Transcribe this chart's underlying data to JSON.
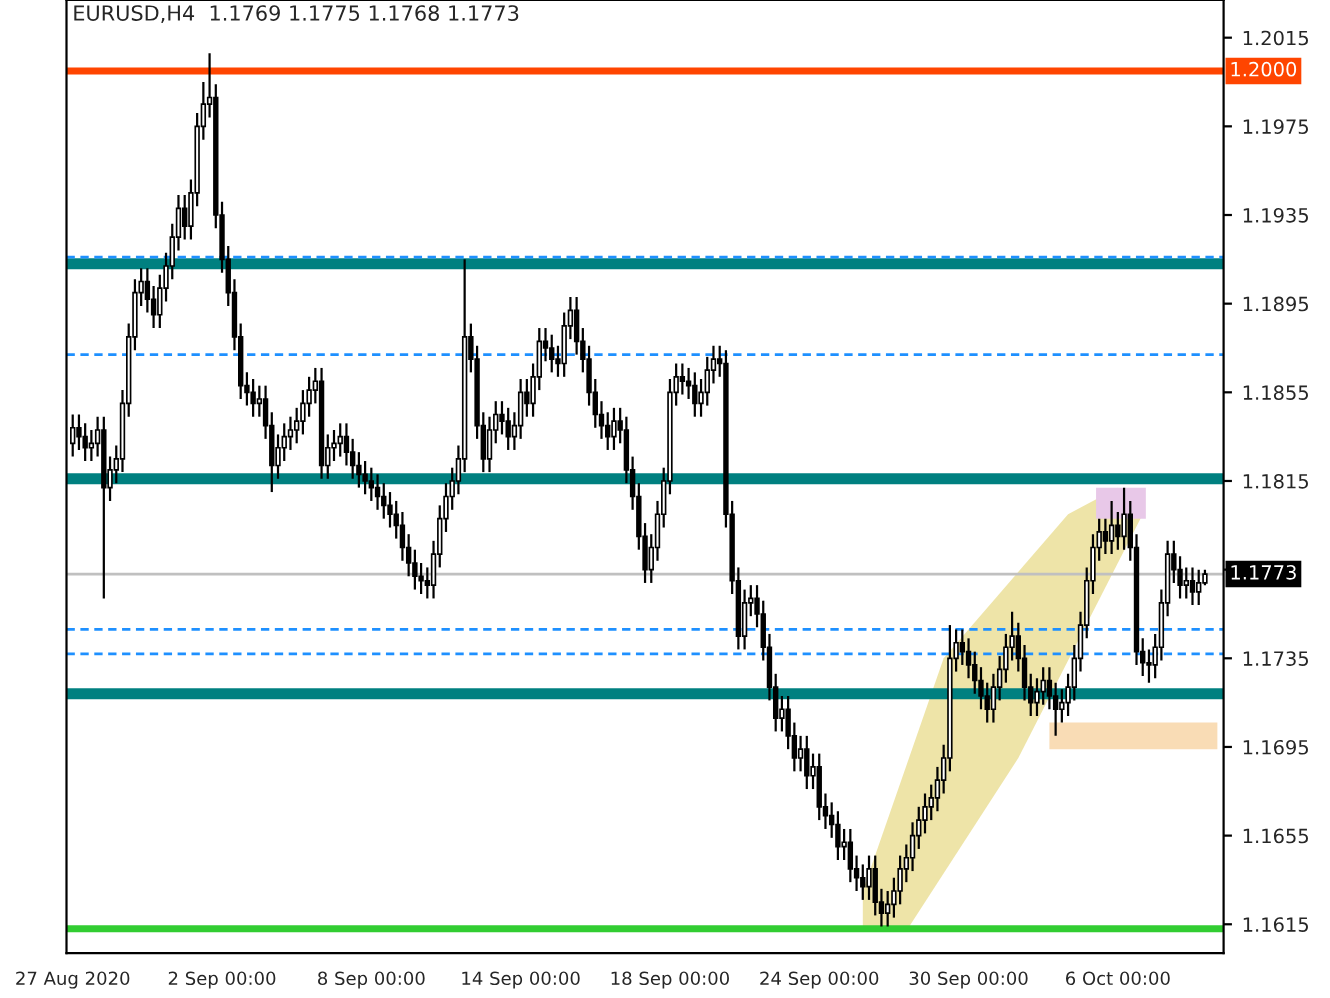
{
  "chart_data": {
    "type": "candlestick",
    "title": "EURUSD,H4  1.1769 1.1775 1.1768 1.1773",
    "categories": [
      "27 Aug 2020",
      null,
      null,
      null,
      null,
      null,
      null,
      null,
      null,
      null,
      null,
      null,
      null,
      null,
      null,
      null,
      null,
      null,
      null,
      null,
      null,
      null,
      null,
      null,
      "2 Sep 00:00",
      null,
      null,
      null,
      null,
      null,
      null,
      null,
      null,
      null,
      null,
      null,
      null,
      null,
      null,
      null,
      null,
      null,
      null,
      null,
      null,
      null,
      null,
      null,
      "8 Sep 00:00",
      null,
      null,
      null,
      null,
      null,
      null,
      null,
      null,
      null,
      null,
      null,
      null,
      null,
      null,
      null,
      null,
      null,
      null,
      null,
      null,
      null,
      null,
      null,
      "14 Sep 00:00",
      null,
      null,
      null,
      null,
      null,
      null,
      null,
      null,
      null,
      null,
      null,
      null,
      null,
      null,
      null,
      null,
      null,
      null,
      null,
      null,
      null,
      null,
      null,
      "18 Sep 00:00",
      null,
      null,
      null,
      null,
      null,
      null,
      null,
      null,
      null,
      null,
      null,
      null,
      null,
      null,
      null,
      null,
      null,
      null,
      null,
      null,
      null,
      null,
      null,
      "24 Sep 00:00",
      null,
      null,
      null,
      null,
      null,
      null,
      null,
      null,
      null,
      null,
      null,
      null,
      null,
      null,
      null,
      null,
      null,
      null,
      null,
      null,
      null,
      null,
      null,
      "30 Sep 00:00",
      null,
      null,
      null,
      null,
      null,
      null,
      null,
      null,
      null,
      null,
      null,
      null,
      null,
      null,
      null,
      null,
      null,
      null,
      null,
      null,
      null,
      null,
      null,
      "6 Oct 00:00",
      null,
      null,
      null,
      null,
      null,
      null,
      null,
      null,
      null,
      null,
      null,
      null,
      null,
      null
    ],
    "ohlc": [
      [
        1.1832,
        1.1845,
        1.1826,
        1.1839
      ],
      [
        1.1839,
        1.1845,
        1.1829,
        1.1835
      ],
      [
        1.1835,
        1.1841,
        1.1824,
        1.183
      ],
      [
        1.183,
        1.1838,
        1.1824,
        1.1832
      ],
      [
        1.1832,
        1.1844,
        1.1826,
        1.1838
      ],
      [
        1.1838,
        1.1844,
        1.1762,
        1.1812
      ],
      [
        1.1812,
        1.1826,
        1.1806,
        1.182
      ],
      [
        1.182,
        1.1831,
        1.1814,
        1.1825
      ],
      [
        1.1825,
        1.1856,
        1.1819,
        1.185
      ],
      [
        1.185,
        1.1886,
        1.1844,
        1.188
      ],
      [
        1.188,
        1.1906,
        1.1874,
        1.19
      ],
      [
        1.19,
        1.1911,
        1.1894,
        1.1905
      ],
      [
        1.1905,
        1.1911,
        1.1891,
        1.1897
      ],
      [
        1.1897,
        1.1903,
        1.1884,
        1.189
      ],
      [
        1.189,
        1.1908,
        1.1884,
        1.1902
      ],
      [
        1.1902,
        1.1918,
        1.1896,
        1.1912
      ],
      [
        1.1912,
        1.1931,
        1.1906,
        1.1925
      ],
      [
        1.1925,
        1.1944,
        1.1919,
        1.1938
      ],
      [
        1.1938,
        1.1944,
        1.1924,
        1.193
      ],
      [
        1.193,
        1.1951,
        1.1924,
        1.1945
      ],
      [
        1.1945,
        1.1981,
        1.1939,
        1.1975
      ],
      [
        1.1975,
        1.1995,
        1.1969,
        1.1985
      ],
      [
        1.1985,
        1.2008,
        1.1979,
        1.1988
      ],
      [
        1.1988,
        1.1994,
        1.1929,
        1.1935
      ],
      [
        1.1935,
        1.1941,
        1.1909,
        1.1915
      ],
      [
        1.1915,
        1.1921,
        1.1894,
        1.19
      ],
      [
        1.19,
        1.1906,
        1.1874,
        1.188
      ],
      [
        1.188,
        1.1886,
        1.1852,
        1.1858
      ],
      [
        1.1858,
        1.1864,
        1.1849,
        1.1855
      ],
      [
        1.1855,
        1.1861,
        1.1844,
        1.185
      ],
      [
        1.185,
        1.1858,
        1.1844,
        1.1852
      ],
      [
        1.1852,
        1.1858,
        1.1834,
        1.184
      ],
      [
        1.184,
        1.1846,
        1.181,
        1.1822
      ],
      [
        1.1822,
        1.1836,
        1.1816,
        1.183
      ],
      [
        1.183,
        1.1841,
        1.1824,
        1.1835
      ],
      [
        1.1835,
        1.1844,
        1.1829,
        1.1838
      ],
      [
        1.1838,
        1.1848,
        1.1832,
        1.1842
      ],
      [
        1.1842,
        1.1856,
        1.1836,
        1.185
      ],
      [
        1.185,
        1.1862,
        1.1844,
        1.1856
      ],
      [
        1.1856,
        1.1866,
        1.185,
        1.186
      ],
      [
        1.186,
        1.1866,
        1.1816,
        1.1822
      ],
      [
        1.1822,
        1.1836,
        1.1816,
        1.183
      ],
      [
        1.183,
        1.1838,
        1.1824,
        1.1832
      ],
      [
        1.1832,
        1.1841,
        1.1826,
        1.1835
      ],
      [
        1.1835,
        1.1841,
        1.1822,
        1.1828
      ],
      [
        1.1828,
        1.1834,
        1.1816,
        1.1822
      ],
      [
        1.1822,
        1.1828,
        1.1812,
        1.1818
      ],
      [
        1.1818,
        1.1824,
        1.1809,
        1.1815
      ],
      [
        1.1815,
        1.1821,
        1.1806,
        1.1812
      ],
      [
        1.1812,
        1.1818,
        1.1802,
        1.1808
      ],
      [
        1.1808,
        1.1814,
        1.1798,
        1.1804
      ],
      [
        1.1804,
        1.181,
        1.1794,
        1.18
      ],
      [
        1.18,
        1.1806,
        1.1789,
        1.1795
      ],
      [
        1.1795,
        1.1801,
        1.1779,
        1.1785
      ],
      [
        1.1785,
        1.1791,
        1.1772,
        1.1778
      ],
      [
        1.1778,
        1.1784,
        1.1766,
        1.1772
      ],
      [
        1.1772,
        1.1778,
        1.1764,
        1.177
      ],
      [
        1.177,
        1.1776,
        1.1762,
        1.1768
      ],
      [
        1.1768,
        1.1788,
        1.1762,
        1.1782
      ],
      [
        1.1782,
        1.1804,
        1.1776,
        1.1798
      ],
      [
        1.1798,
        1.1814,
        1.1792,
        1.1808
      ],
      [
        1.1808,
        1.1821,
        1.1802,
        1.1815
      ],
      [
        1.1815,
        1.1831,
        1.1809,
        1.1825
      ],
      [
        1.1825,
        1.1915,
        1.1819,
        1.188
      ],
      [
        1.188,
        1.1886,
        1.1864,
        1.187
      ],
      [
        1.187,
        1.1876,
        1.1834,
        1.184
      ],
      [
        1.184,
        1.1846,
        1.1819,
        1.1825
      ],
      [
        1.1825,
        1.1844,
        1.1819,
        1.1838
      ],
      [
        1.1838,
        1.1851,
        1.1832,
        1.1845
      ],
      [
        1.1845,
        1.1851,
        1.1836,
        1.1842
      ],
      [
        1.1842,
        1.1848,
        1.1829,
        1.1835
      ],
      [
        1.1835,
        1.1846,
        1.1829,
        1.184
      ],
      [
        1.184,
        1.1861,
        1.1834,
        1.1855
      ],
      [
        1.1855,
        1.1861,
        1.1844,
        1.185
      ],
      [
        1.185,
        1.1868,
        1.1844,
        1.1862
      ],
      [
        1.1862,
        1.1884,
        1.1856,
        1.1878
      ],
      [
        1.1878,
        1.1884,
        1.1869,
        1.1875
      ],
      [
        1.1875,
        1.1881,
        1.1864,
        1.187
      ],
      [
        1.187,
        1.1876,
        1.1862,
        1.1868
      ],
      [
        1.1868,
        1.1891,
        1.1862,
        1.1885
      ],
      [
        1.1885,
        1.1898,
        1.1879,
        1.1892
      ],
      [
        1.1892,
        1.1898,
        1.1872,
        1.1878
      ],
      [
        1.1878,
        1.1884,
        1.1864,
        1.187
      ],
      [
        1.187,
        1.1876,
        1.1849,
        1.1855
      ],
      [
        1.1855,
        1.1861,
        1.1839,
        1.1845
      ],
      [
        1.1845,
        1.1851,
        1.1834,
        1.184
      ],
      [
        1.184,
        1.1846,
        1.1829,
        1.1835
      ],
      [
        1.1835,
        1.1848,
        1.1829,
        1.1842
      ],
      [
        1.1842,
        1.1848,
        1.1832,
        1.1838
      ],
      [
        1.1838,
        1.1844,
        1.1814,
        1.182
      ],
      [
        1.182,
        1.1826,
        1.1802,
        1.1808
      ],
      [
        1.1808,
        1.1814,
        1.1784,
        1.179
      ],
      [
        1.179,
        1.1796,
        1.1769,
        1.1775
      ],
      [
        1.1775,
        1.1791,
        1.1769,
        1.1785
      ],
      [
        1.1785,
        1.1806,
        1.1779,
        1.18
      ],
      [
        1.18,
        1.1821,
        1.1794,
        1.1815
      ],
      [
        1.1815,
        1.1861,
        1.1809,
        1.1855
      ],
      [
        1.1855,
        1.1868,
        1.1849,
        1.1862
      ],
      [
        1.1862,
        1.1868,
        1.1854,
        1.186
      ],
      [
        1.186,
        1.1866,
        1.1852,
        1.1858
      ],
      [
        1.1858,
        1.1864,
        1.1844,
        1.185
      ],
      [
        1.185,
        1.1861,
        1.1844,
        1.1855
      ],
      [
        1.1855,
        1.1871,
        1.1849,
        1.1865
      ],
      [
        1.1865,
        1.1876,
        1.1859,
        1.187
      ],
      [
        1.187,
        1.1876,
        1.1862,
        1.1868
      ],
      [
        1.1868,
        1.1874,
        1.1794,
        1.18
      ],
      [
        1.18,
        1.1806,
        1.1764,
        1.177
      ],
      [
        1.177,
        1.1776,
        1.1739,
        1.1745
      ],
      [
        1.1745,
        1.1766,
        1.1739,
        1.176
      ],
      [
        1.176,
        1.1768,
        1.1754,
        1.1762
      ],
      [
        1.1762,
        1.1768,
        1.1749,
        1.1755
      ],
      [
        1.1755,
        1.1761,
        1.1734,
        1.174
      ],
      [
        1.174,
        1.1746,
        1.1716,
        1.1722
      ],
      [
        1.1722,
        1.1728,
        1.1702,
        1.1708
      ],
      [
        1.1708,
        1.1718,
        1.1702,
        1.1712
      ],
      [
        1.1712,
        1.1718,
        1.1694,
        1.17
      ],
      [
        1.17,
        1.1706,
        1.1684,
        1.169
      ],
      [
        1.169,
        1.17,
        1.1684,
        1.1694
      ],
      [
        1.1694,
        1.17,
        1.1676,
        1.1682
      ],
      [
        1.1682,
        1.1692,
        1.1676,
        1.1686
      ],
      [
        1.1686,
        1.1692,
        1.1662,
        1.1668
      ],
      [
        1.1668,
        1.1674,
        1.1658,
        1.1664
      ],
      [
        1.1664,
        1.167,
        1.1654,
        1.166
      ],
      [
        1.166,
        1.1666,
        1.1644,
        1.165
      ],
      [
        1.165,
        1.1658,
        1.1644,
        1.1652
      ],
      [
        1.1652,
        1.1658,
        1.1634,
        1.164
      ],
      [
        1.164,
        1.1646,
        1.163,
        1.1636
      ],
      [
        1.1636,
        1.1642,
        1.1626,
        1.1632
      ],
      [
        1.1632,
        1.1646,
        1.1626,
        1.164
      ],
      [
        1.164,
        1.1646,
        1.1619,
        1.1625
      ],
      [
        1.1625,
        1.1631,
        1.1614,
        1.162
      ],
      [
        1.162,
        1.163,
        1.1614,
        1.1624
      ],
      [
        1.1624,
        1.1636,
        1.1618,
        1.163
      ],
      [
        1.163,
        1.1646,
        1.1624,
        1.164
      ],
      [
        1.164,
        1.1651,
        1.1634,
        1.1645
      ],
      [
        1.1645,
        1.1661,
        1.1639,
        1.1655
      ],
      [
        1.1655,
        1.1668,
        1.1649,
        1.1662
      ],
      [
        1.1662,
        1.1674,
        1.1656,
        1.1668
      ],
      [
        1.1668,
        1.1678,
        1.1662,
        1.1672
      ],
      [
        1.1672,
        1.1686,
        1.1666,
        1.168
      ],
      [
        1.168,
        1.1696,
        1.1674,
        1.169
      ],
      [
        1.169,
        1.175,
        1.1684,
        1.1735
      ],
      [
        1.1735,
        1.1748,
        1.1729,
        1.1742
      ],
      [
        1.1742,
        1.1748,
        1.1732,
        1.1738
      ],
      [
        1.1738,
        1.1744,
        1.1726,
        1.1732
      ],
      [
        1.1732,
        1.1738,
        1.1719,
        1.1725
      ],
      [
        1.1725,
        1.1731,
        1.1712,
        1.1718
      ],
      [
        1.1718,
        1.1724,
        1.1706,
        1.1712
      ],
      [
        1.1712,
        1.1728,
        1.1706,
        1.1722
      ],
      [
        1.1722,
        1.1736,
        1.1716,
        1.173
      ],
      [
        1.173,
        1.1746,
        1.1724,
        1.174
      ],
      [
        1.174,
        1.1756,
        1.1734,
        1.1745
      ],
      [
        1.1745,
        1.1751,
        1.1729,
        1.1735
      ],
      [
        1.1735,
        1.1741,
        1.1716,
        1.1722
      ],
      [
        1.1722,
        1.1728,
        1.1709,
        1.1715
      ],
      [
        1.1715,
        1.1726,
        1.1709,
        1.172
      ],
      [
        1.172,
        1.1731,
        1.1714,
        1.1725
      ],
      [
        1.1725,
        1.1731,
        1.1712,
        1.1718
      ],
      [
        1.1718,
        1.1724,
        1.17,
        1.1712
      ],
      [
        1.1712,
        1.1721,
        1.1706,
        1.1715
      ],
      [
        1.1715,
        1.1728,
        1.1709,
        1.1722
      ],
      [
        1.1722,
        1.1741,
        1.1716,
        1.1735
      ],
      [
        1.1735,
        1.1756,
        1.1729,
        1.175
      ],
      [
        1.175,
        1.1776,
        1.1744,
        1.177
      ],
      [
        1.177,
        1.1791,
        1.1764,
        1.1785
      ],
      [
        1.1785,
        1.1798,
        1.1779,
        1.1792
      ],
      [
        1.1792,
        1.1798,
        1.1782,
        1.1788
      ],
      [
        1.1788,
        1.1806,
        1.1782,
        1.1795
      ],
      [
        1.1795,
        1.1801,
        1.1784,
        1.179
      ],
      [
        1.179,
        1.1812,
        1.1784,
        1.18
      ],
      [
        1.18,
        1.1806,
        1.1779,
        1.1785
      ],
      [
        1.1785,
        1.1791,
        1.1732,
        1.1738
      ],
      [
        1.1738,
        1.1744,
        1.1727,
        1.1733
      ],
      [
        1.1733,
        1.1739,
        1.1724,
        1.1732
      ],
      [
        1.1732,
        1.1746,
        1.1726,
        1.174
      ],
      [
        1.174,
        1.1766,
        1.1734,
        1.176
      ],
      [
        1.176,
        1.1788,
        1.1754,
        1.1782
      ],
      [
        1.1782,
        1.1788,
        1.1769,
        1.1775
      ],
      [
        1.1775,
        1.1781,
        1.1762,
        1.1768
      ],
      [
        1.1768,
        1.1776,
        1.1762,
        1.177
      ],
      [
        1.177,
        1.1776,
        1.1759,
        1.1765
      ],
      [
        1.1765,
        1.1775,
        1.1759,
        1.1769
      ],
      [
        1.1769,
        1.1775,
        1.1768,
        1.1773
      ]
    ],
    "ylim": [
      1.1602,
      1.2032
    ],
    "yticks": [
      1.2015,
      1.1975,
      1.1935,
      1.1895,
      1.1855,
      1.1815,
      {
        "value": 1.1775,
        "label": null
      },
      1.1735,
      1.1695,
      1.1655,
      1.1615
    ],
    "grid": false,
    "ref_lines": [
      {
        "axis": "y",
        "value": 1.2,
        "label": "1.2000",
        "color": "#ff4500"
      },
      {
        "axis": "y",
        "value": 1.1913,
        "color": "#008080"
      },
      {
        "axis": "y",
        "value": 1.1816,
        "color": "#008080"
      },
      {
        "axis": "y",
        "value": 1.1719,
        "color": "#008080"
      },
      {
        "axis": "y",
        "value": 1.1613,
        "color": "#32cd32"
      },
      {
        "axis": "y",
        "value": 1.1773,
        "label": "1.1773",
        "color": "#c0c0c0"
      },
      {
        "axis": "y",
        "value": 1.1916,
        "color": "#1e90ff",
        "line_style": "dashed"
      },
      {
        "axis": "y",
        "value": 1.1872,
        "color": "#1e90ff",
        "line_style": "dashed"
      },
      {
        "axis": "y",
        "value": 1.1748,
        "color": "#1e90ff",
        "line_style": "dashed"
      },
      {
        "axis": "y",
        "value": 1.1737,
        "color": "#1e90ff",
        "line_style": "dashed"
      }
    ]
  }
}
